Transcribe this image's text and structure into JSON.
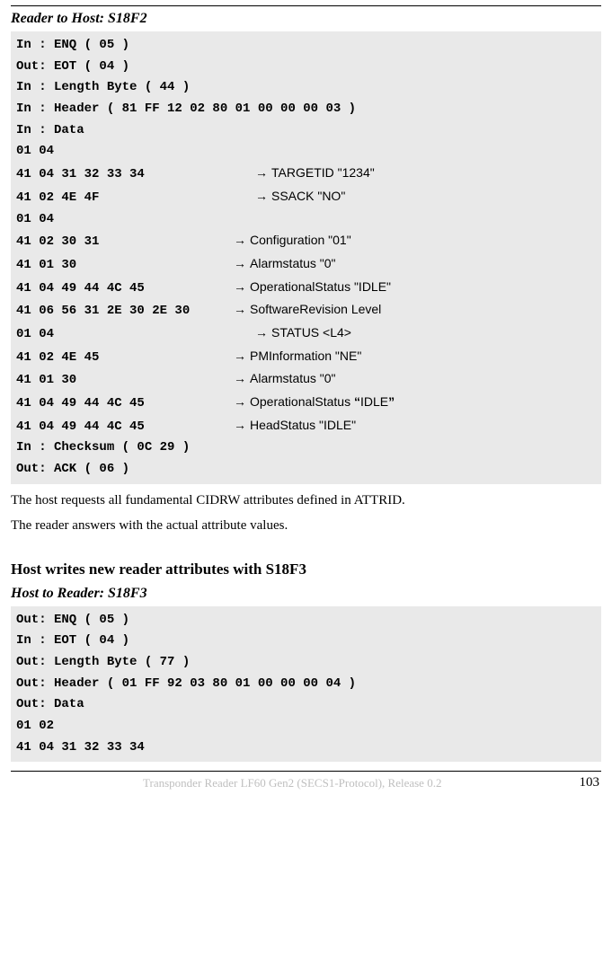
{
  "colors": {
    "page_bg": "#ffffff",
    "code_bg": "#e9e9e9",
    "text": "#000000",
    "footer_faded": "#bfbfbf"
  },
  "typography": {
    "body_family": "Georgia, Times New Roman, serif",
    "mono_family": "Courier New, monospace",
    "sans_family": "Arial, Helvetica, sans-serif",
    "body_size_pt": 11,
    "code_size_pt": 10.5,
    "section_title_size_pt": 13,
    "sub_title_size_pt": 12
  },
  "section1": {
    "subtitle": "Reader to Host: S18F2",
    "lines": {
      "l1": "In : ENQ ( 05 )",
      "l2": "Out: EOT ( 04 )",
      "l3": "In : Length Byte ( 44 )",
      "l4": "In : Header ( 81 FF 12 02 80 01 00 00 00 03 )",
      "l5": "In : Data",
      "l6": "01 04",
      "l7h": "41 04 31 32 33 34",
      "l7a": "TARGETID \"1234\"",
      "l8h": "41 02 4E 4F",
      "l8a": "SSACK \"NO\"",
      "l9": "01 04",
      "l10h": "41 02 30 31",
      "l10a": "Configuration \"01\"",
      "l11h": "41 01 30",
      "l11a": "Alarmstatus \"0\"",
      "l12h": "41 04 49 44 4C 45",
      "l12a": "OperationalStatus \"IDLE\"",
      "l13h": "41 06 56 31 2E 30 2E 30",
      "l13a": "SoftwareRevision Level",
      "l14h": "01 04",
      "l14a": "STATUS <L4>",
      "l15h": "41 02 4E 45",
      "l15a": "PMInformation \"NE\"",
      "l16h": "41 01 30",
      "l16a": "Alarmstatus \"0\"",
      "l17h": "41 04 49 44 4C 45",
      "l17a_pre": "OperationalStatus ",
      "l17a_q1": "“",
      "l17a_mid": "IDLE",
      "l17a_q2": "”",
      "l18h": "41 04 49 44 4C 45",
      "l18a": "HeadStatus \"IDLE\"",
      "l19": "In : Checksum ( 0C 29 )",
      "l20": "Out: ACK ( 06 )"
    },
    "para1": "The host requests all fundamental CIDRW attributes defined in ATTRID.",
    "para2": "The reader answers with the actual attribute values."
  },
  "section2": {
    "title": "Host writes new reader attributes with S18F3",
    "subtitle": "Host to Reader: S18F3",
    "lines": {
      "l1": "Out: ENQ ( 05 )",
      "l2": "In : EOT ( 04 )",
      "l3": "Out: Length Byte ( 77 )",
      "l4": "Out: Header ( 01 FF 92 03 80 01 00 00 00 04 )",
      "l5": "Out: Data",
      "l6": "01 02",
      "l7": "41 04 31 32 33 34"
    }
  },
  "footer": {
    "left": "Transponder Reader LF60 Gen2 (SECS1-Protocol), Release 0.2",
    "page": "103"
  },
  "arrow_glyph": "→"
}
